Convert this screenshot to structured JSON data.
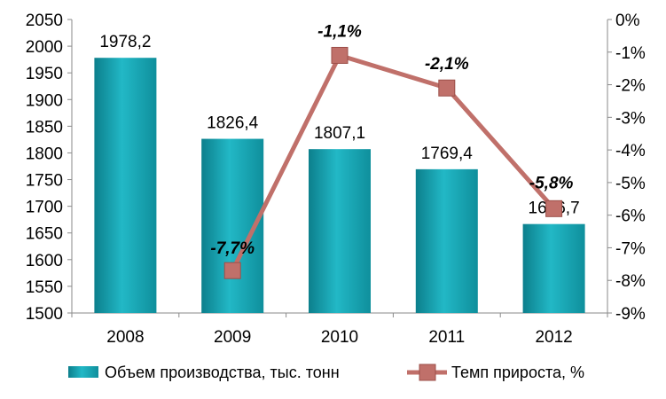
{
  "chart_data": {
    "type": "bar+line",
    "categories": [
      "2008",
      "2009",
      "2010",
      "2011",
      "2012"
    ],
    "series": [
      {
        "name": "Объем производства, тыс. тонн",
        "type": "bar",
        "axis": "left",
        "values": [
          1978.2,
          1826.4,
          1807.1,
          1769.4,
          1666.7
        ],
        "labels": [
          "1978,2",
          "1826,4",
          "1807,1",
          "1769,4",
          "1666,7"
        ],
        "color": "#1aa5b4"
      },
      {
        "name": "Темп прироста, %",
        "type": "line",
        "axis": "right",
        "values": [
          null,
          -7.7,
          -1.1,
          -2.1,
          -5.8
        ],
        "labels": [
          "",
          "-7,7%",
          "-1,1%",
          "-2,1%",
          "-5,8%"
        ],
        "color": "#c0706a"
      }
    ],
    "y_left": {
      "ylim": [
        1500,
        2050
      ],
      "ticks": [
        "1500",
        "1550",
        "1600",
        "1650",
        "1700",
        "1750",
        "1800",
        "1850",
        "1900",
        "1950",
        "2000",
        "2050"
      ]
    },
    "y_right": {
      "ylim": [
        -9,
        0
      ],
      "ticks": [
        "-9%",
        "-8%",
        "-7%",
        "-6%",
        "-5%",
        "-4%",
        "-3%",
        "-2%",
        "-1%",
        "0%"
      ]
    },
    "legend": "bottom",
    "grid": false
  }
}
